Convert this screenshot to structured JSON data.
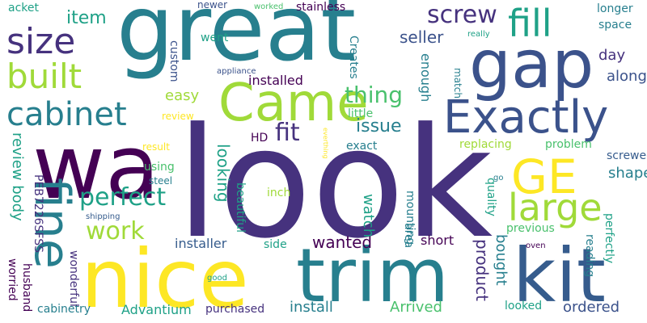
{
  "words": {
    "look": "look",
    "great": "great",
    "wa": "wa",
    "nice": "nice",
    "trim": "trim",
    "kit": "kit",
    "gap": "gap",
    "came": "Came",
    "exactly": "Exactly",
    "fine": "fine",
    "fill": "fill",
    "ge": "GE",
    "large": "large",
    "size": "size",
    "built": "built",
    "cabinet": "cabinet",
    "screw": "screw",
    "perfect": "perfect",
    "work": "work",
    "thing": "thing",
    "fit": "fit",
    "issue": "issue",
    "item": "item",
    "seller": "seller",
    "along": "along",
    "day": "day",
    "shape": "shape",
    "installed": "installed",
    "easy": "easy",
    "review_body": "review body",
    "wanted": "wanted",
    "looking": "looking",
    "enough": "enough",
    "replacing": "replacing",
    "problem": "problem",
    "product": "product",
    "bought": "bought",
    "install": "install",
    "arrived": "Arrived",
    "ordered": "ordered",
    "installer": "installer",
    "short": "short",
    "watch": "watch",
    "mounting": "mounting",
    "area": "area",
    "advantium": "Advantium",
    "purchased": "purchased",
    "cabinetry": "cabinetry",
    "acket": "acket",
    "newer": "newer",
    "worked": "worked",
    "stainless": "stainless",
    "longer": "longer",
    "space": "space",
    "went": "went",
    "custom": "custom",
    "appliance": "appliance",
    "creates": "Creates",
    "match": "match",
    "really": "really",
    "review": "review",
    "little": "little",
    "hd": "HD",
    "exact": "exact",
    "result": "result",
    "everthing": "everthing",
    "screwed": "screwed",
    "using": "using",
    "steel": "steel",
    "inch": "inch",
    "beautiful": "beautiful",
    "quality": "quality",
    "go": "go",
    "previous": "previous",
    "perfectly": "perfectly",
    "oven": "oven",
    "side": "side",
    "pe": "PEB7226SFSS",
    "shipping": "shipping",
    "wonderful": "wonderful",
    "worried": "worried",
    "husband": "husband",
    "good": "good",
    "reading": "reading",
    "looked": "looked"
  },
  "palette": [
    "#440154",
    "#46327e",
    "#3b528b",
    "#365c8d",
    "#277f8e",
    "#1fa187",
    "#4ac16d",
    "#a0da39",
    "#fde725"
  ]
}
